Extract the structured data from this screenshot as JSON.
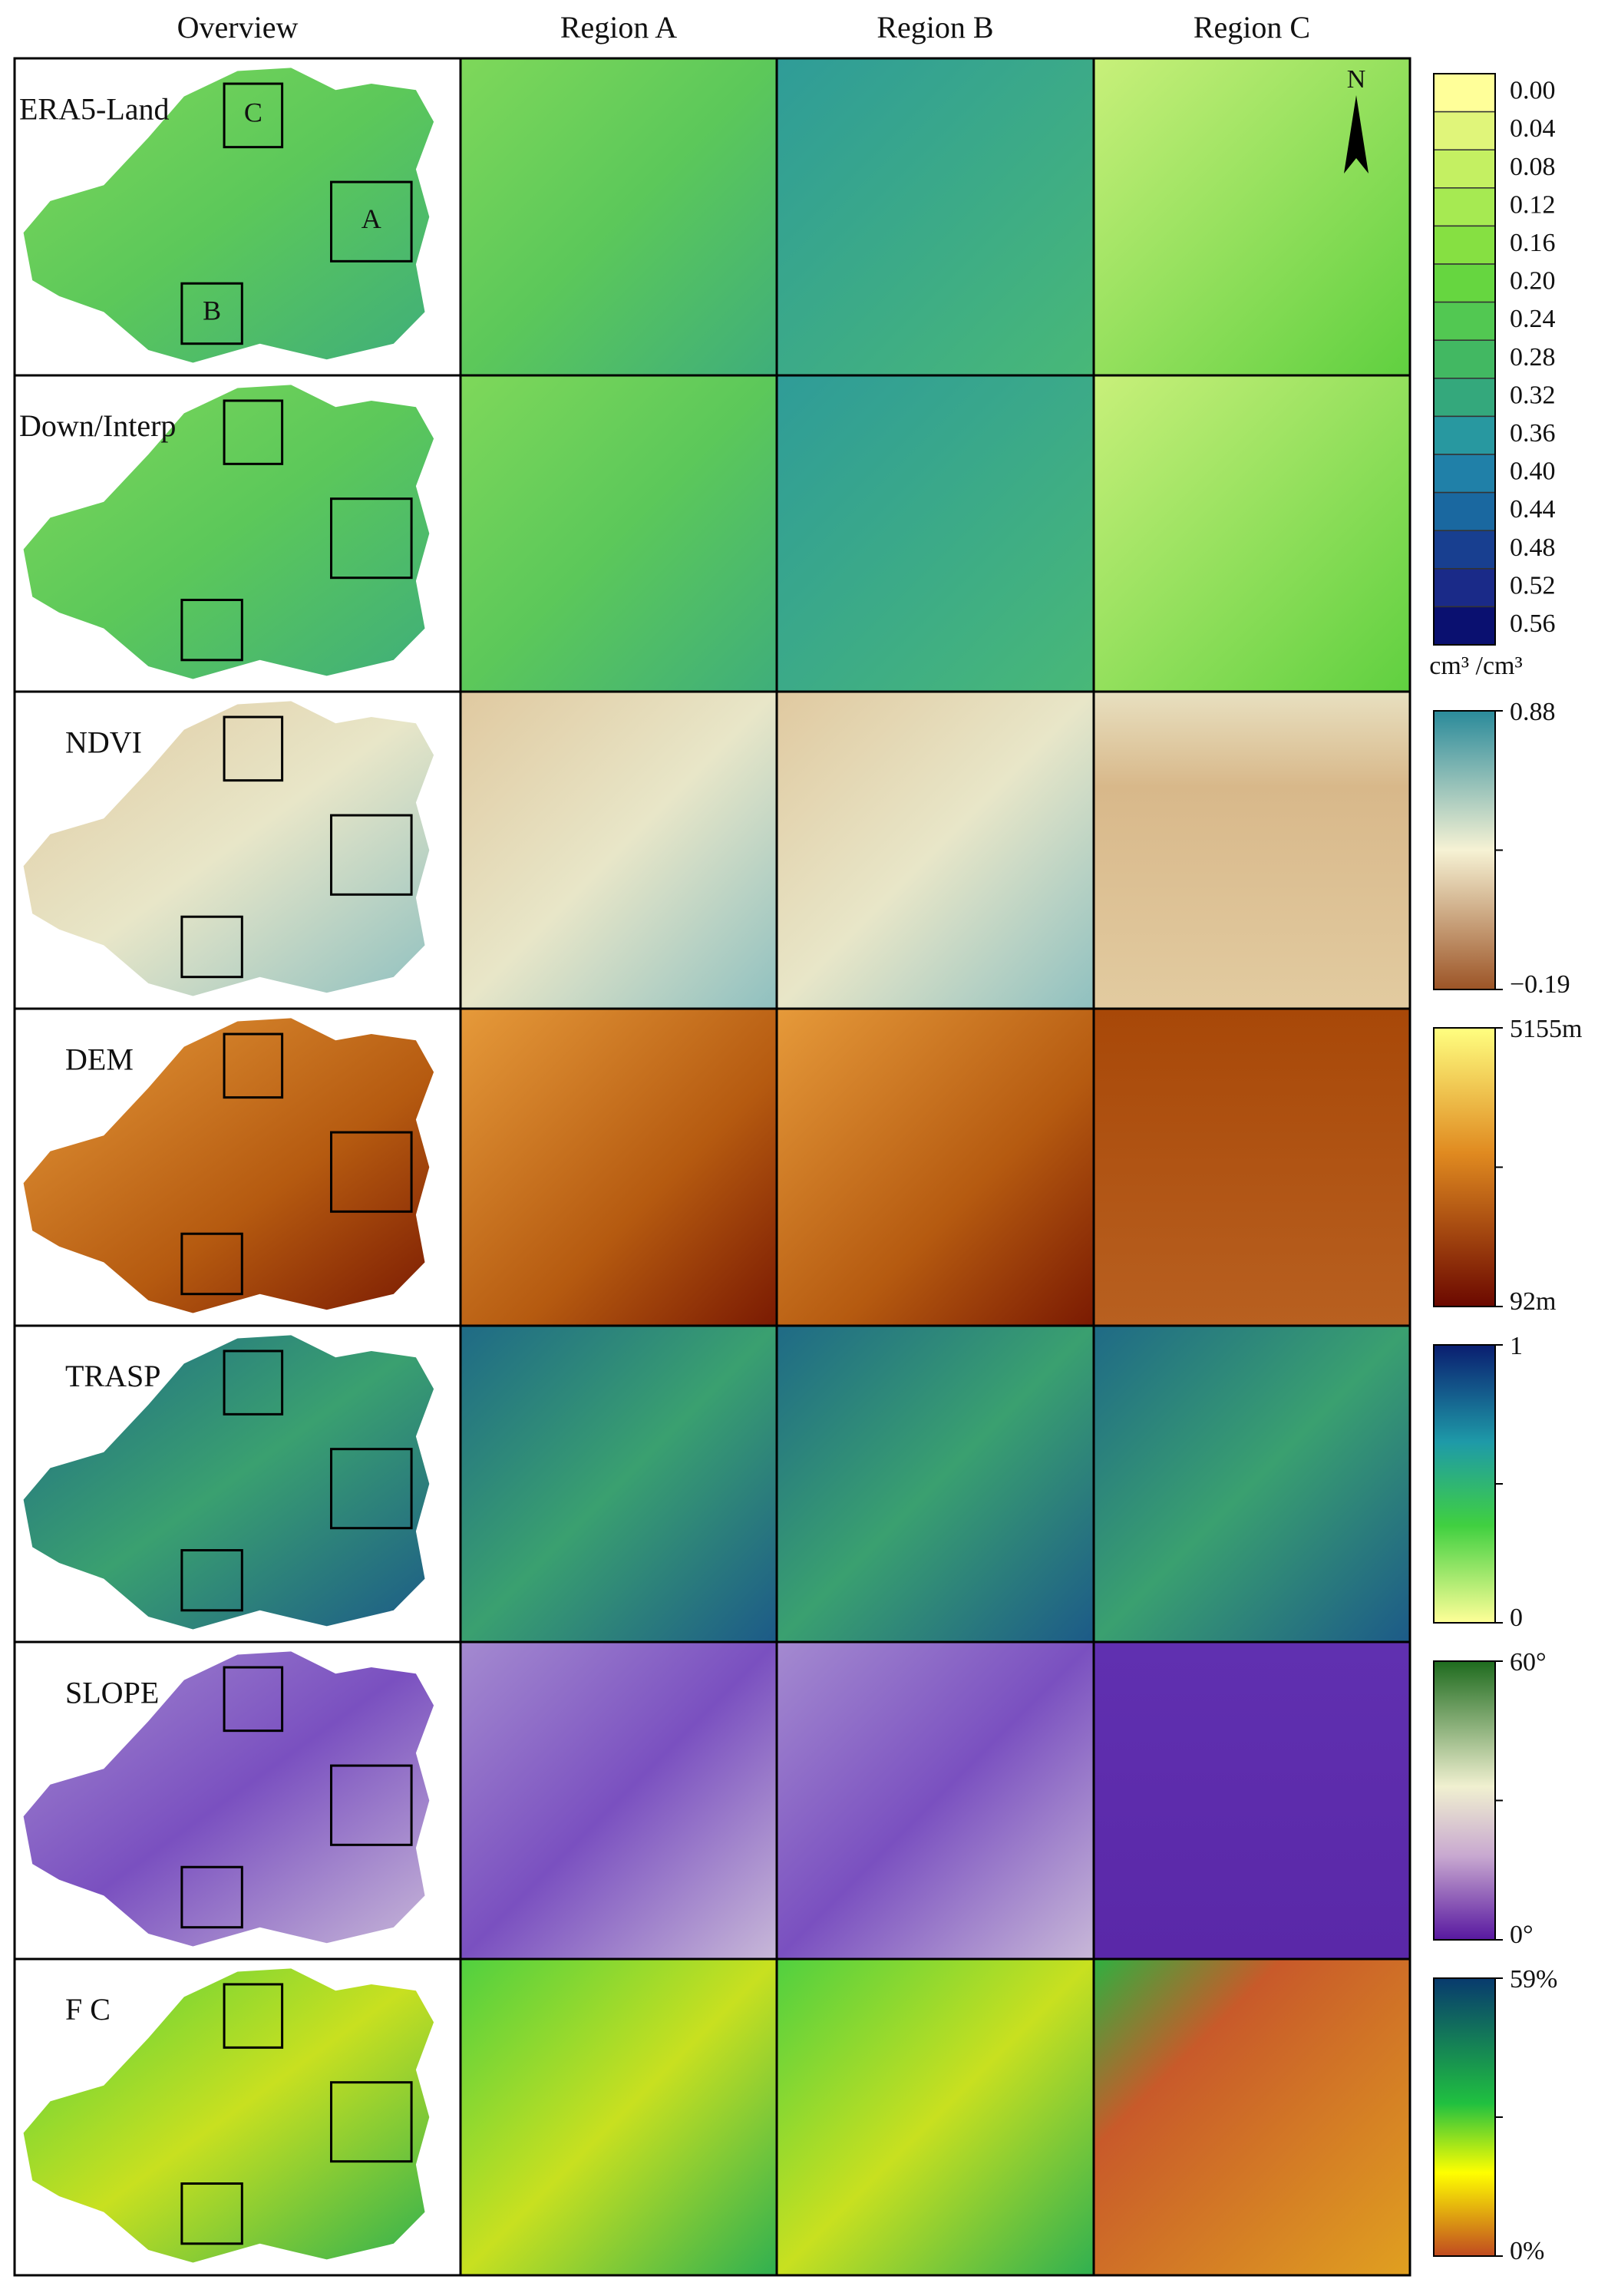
{
  "header": {
    "columns": [
      "Overview",
      "Region A",
      "Region B",
      "Region C"
    ]
  },
  "rows": [
    {
      "label": "ERA5-Land"
    },
    {
      "label": "Down/Interp"
    },
    {
      "label": "NDVI"
    },
    {
      "label": "DEM"
    },
    {
      "label": "TRASP"
    },
    {
      "label": "SLOPE"
    },
    {
      "label": "F C"
    }
  ],
  "overview_boxes": [
    "A",
    "B",
    "C"
  ],
  "north": "N",
  "legends": [
    {
      "ticks": [
        "0.00",
        "0.04",
        "0.08",
        "0.12",
        "0.16",
        "0.20",
        "0.24",
        "0.28",
        "0.32",
        "0.36",
        "0.40",
        "0.44",
        "0.48",
        "0.52",
        "0.56"
      ],
      "unit": "cm³ /cm³"
    },
    {
      "ticks": [
        "0.88",
        "−0.19"
      ]
    },
    {
      "ticks": [
        "5155m",
        "92m"
      ]
    },
    {
      "ticks": [
        "1",
        "0"
      ]
    },
    {
      "ticks": [
        "60°",
        "0°"
      ]
    },
    {
      "ticks": [
        "59%",
        "0%"
      ]
    }
  ]
}
